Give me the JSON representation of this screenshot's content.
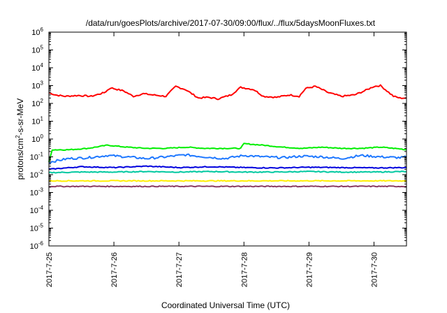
{
  "chart_data": {
    "type": "line",
    "title": "/data/run/goesPlots/archive/2017-07-30/09:00/flux/../flux/5daysMoonFluxes.txt",
    "xlabel": "Coordinated Universal Time (UTC)",
    "ylabel_parts": [
      "protons/cm",
      "2",
      "-s-sr-MeV"
    ],
    "y_scale": "log",
    "ylim": [
      1e-06,
      1000000.0
    ],
    "y_ticks": [
      {
        "base": "10",
        "exp": "-6"
      },
      {
        "base": "10",
        "exp": "-5"
      },
      {
        "base": "10",
        "exp": "-4"
      },
      {
        "base": "10",
        "exp": "-3"
      },
      {
        "base": "10",
        "exp": "-2"
      },
      {
        "base": "10",
        "exp": "-1"
      },
      {
        "base": "10",
        "exp": "0"
      },
      {
        "base": "10",
        "exp": "1"
      },
      {
        "base": "10",
        "exp": "2"
      },
      {
        "base": "10",
        "exp": "3"
      },
      {
        "base": "10",
        "exp": "4"
      },
      {
        "base": "10",
        "exp": "5"
      },
      {
        "base": "10",
        "exp": "6"
      }
    ],
    "x_ticks": [
      "2017-7-25",
      "2017-7-26",
      "2017-7-27",
      "2017-7-28",
      "2017-7-29",
      "2017-7-30"
    ],
    "x_range_days": [
      0,
      5.5
    ],
    "grid": false,
    "series": [
      {
        "color": "#ff0000",
        "x_days": [
          0,
          0.1,
          0.25,
          0.45,
          0.65,
          0.85,
          0.95,
          1.15,
          1.3,
          1.45,
          1.6,
          1.8,
          1.95,
          2.1,
          2.3,
          2.45,
          2.6,
          2.8,
          2.95,
          3.15,
          3.3,
          3.5,
          3.7,
          3.85,
          3.95,
          4.1,
          4.3,
          4.5,
          4.7,
          4.85,
          5.0,
          5.1,
          5.3,
          5.4,
          5.5
        ],
        "values": [
          400,
          300,
          250,
          280,
          250,
          400,
          750,
          500,
          250,
          350,
          300,
          250,
          900,
          600,
          200,
          220,
          180,
          300,
          800,
          600,
          250,
          220,
          300,
          250,
          700,
          900,
          400,
          250,
          300,
          500,
          900,
          1000,
          250,
          200,
          200
        ]
      },
      {
        "color": "#00ee00",
        "x_days": [
          0,
          0.05,
          0.3,
          0.6,
          0.9,
          1.2,
          1.5,
          1.8,
          2.1,
          2.4,
          2.7,
          2.95,
          3.0,
          3.3,
          3.6,
          3.9,
          4.2,
          4.5,
          4.8,
          5.1,
          5.4,
          5.5
        ],
        "values": [
          0.05,
          0.25,
          0.25,
          0.3,
          0.45,
          0.35,
          0.3,
          0.3,
          0.35,
          0.3,
          0.3,
          0.3,
          0.55,
          0.45,
          0.35,
          0.3,
          0.35,
          0.3,
          0.3,
          0.35,
          0.28,
          0.25
        ]
      },
      {
        "color": "#1e78ff",
        "x_days": [
          0,
          0.3,
          0.6,
          0.9,
          1.2,
          1.5,
          1.8,
          2.1,
          2.4,
          2.7,
          3.0,
          3.3,
          3.6,
          3.9,
          4.2,
          4.5,
          4.8,
          5.1,
          5.4,
          5.5
        ],
        "values": [
          0.05,
          0.08,
          0.09,
          0.12,
          0.1,
          0.08,
          0.1,
          0.13,
          0.1,
          0.08,
          0.12,
          0.1,
          0.09,
          0.11,
          0.1,
          0.08,
          0.12,
          0.1,
          0.09,
          0.1
        ]
      },
      {
        "color": "#00c8a0",
        "x_days": [
          0,
          0.5,
          1.0,
          1.5,
          2.0,
          2.5,
          3.0,
          3.5,
          4.0,
          4.5,
          5.0,
          5.5
        ],
        "values": [
          0.013,
          0.014,
          0.014,
          0.015,
          0.014,
          0.015,
          0.014,
          0.014,
          0.015,
          0.014,
          0.014,
          0.015
        ]
      },
      {
        "color": "#0000dd",
        "x_days": [
          0,
          0.5,
          1.0,
          1.5,
          2.0,
          2.5,
          3.0,
          3.5,
          4.0,
          4.5,
          5.0,
          5.5
        ],
        "values": [
          0.02,
          0.028,
          0.025,
          0.03,
          0.025,
          0.028,
          0.025,
          0.024,
          0.026,
          0.025,
          0.024,
          0.025
        ]
      },
      {
        "color": "#ffee00",
        "x_days": [
          0,
          1,
          2,
          3,
          4,
          5,
          5.5
        ],
        "values": [
          0.0045,
          0.0045,
          0.0045,
          0.0045,
          0.0045,
          0.0045,
          0.0045
        ]
      },
      {
        "color": "#8b3a62",
        "x_days": [
          0,
          1,
          2,
          3,
          4,
          5,
          5.5
        ],
        "values": [
          0.0022,
          0.0022,
          0.0022,
          0.0022,
          0.0022,
          0.0022,
          0.0022
        ]
      }
    ]
  }
}
